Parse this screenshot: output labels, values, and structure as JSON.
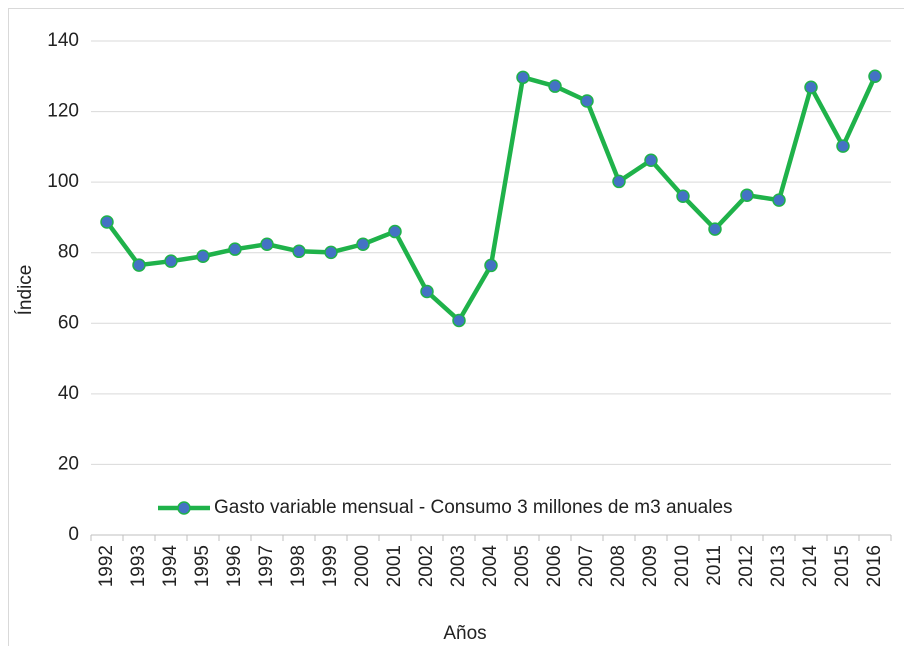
{
  "chart_data": {
    "type": "line",
    "x_label": "Años",
    "y_label": "Índice",
    "categories": [
      "1992",
      "1993",
      "1994",
      "1995",
      "1996",
      "1997",
      "1998",
      "1999",
      "2000",
      "2001",
      "2002",
      "2003",
      "2004",
      "2005",
      "2006",
      "2007",
      "2008",
      "2009",
      "2010",
      "2011",
      "2012",
      "2013",
      "2014",
      "2015",
      "2016"
    ],
    "series": [
      {
        "name": "Gasto variable mensual - Consumo 3 millones de m3 anuales",
        "color": "#1fb24a",
        "marker_color": "#4472c4",
        "values": [
          88.7,
          76.5,
          77.6,
          79,
          81,
          82.4,
          80.4,
          80.1,
          82.4,
          86,
          69,
          60.8,
          76.4,
          129.7,
          127.2,
          123,
          100.2,
          106.2,
          96,
          86.7,
          96.3,
          94.9,
          126.9,
          110.2,
          130
        ]
      }
    ],
    "ylim": [
      0,
      140
    ],
    "yticks": [
      0,
      20,
      40,
      60,
      80,
      100,
      120,
      140
    ],
    "grid": true,
    "legend": "bottom"
  }
}
